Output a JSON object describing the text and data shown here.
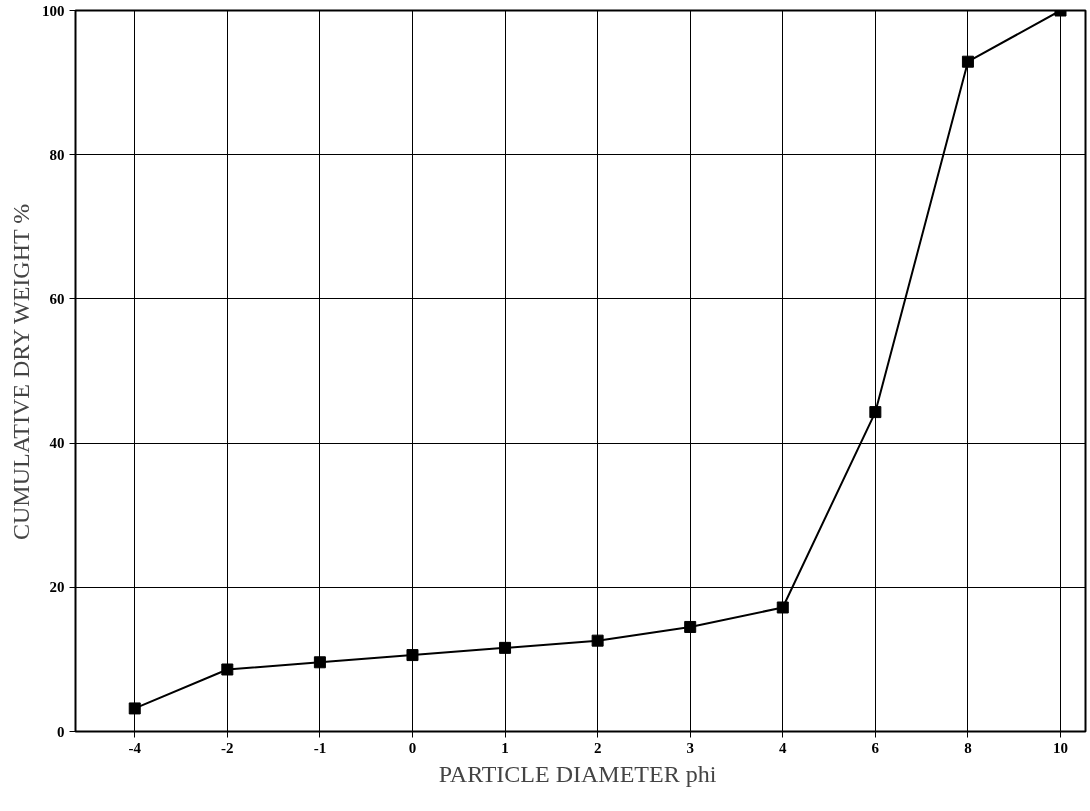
{
  "chart_data": {
    "type": "line",
    "xlabel": "PARTICLE DIAMETER  phi",
    "ylabel": "CUMULATIVE DRY WEIGHT %",
    "categories": [
      "-4",
      "-2",
      "-1",
      "0",
      "1",
      "2",
      "3",
      "4",
      "6",
      "8",
      "10"
    ],
    "series": [
      {
        "color": "#000000",
        "values": [
          3.2,
          8.6,
          9.6,
          10.6,
          11.6,
          12.6,
          14.5,
          17.2,
          44.3,
          92.9,
          100
        ]
      }
    ],
    "ylim": [
      0,
      100
    ],
    "yticks": [
      0,
      20,
      40,
      60,
      80,
      100
    ],
    "grid": true,
    "marker": "square",
    "line_style": "solid"
  }
}
